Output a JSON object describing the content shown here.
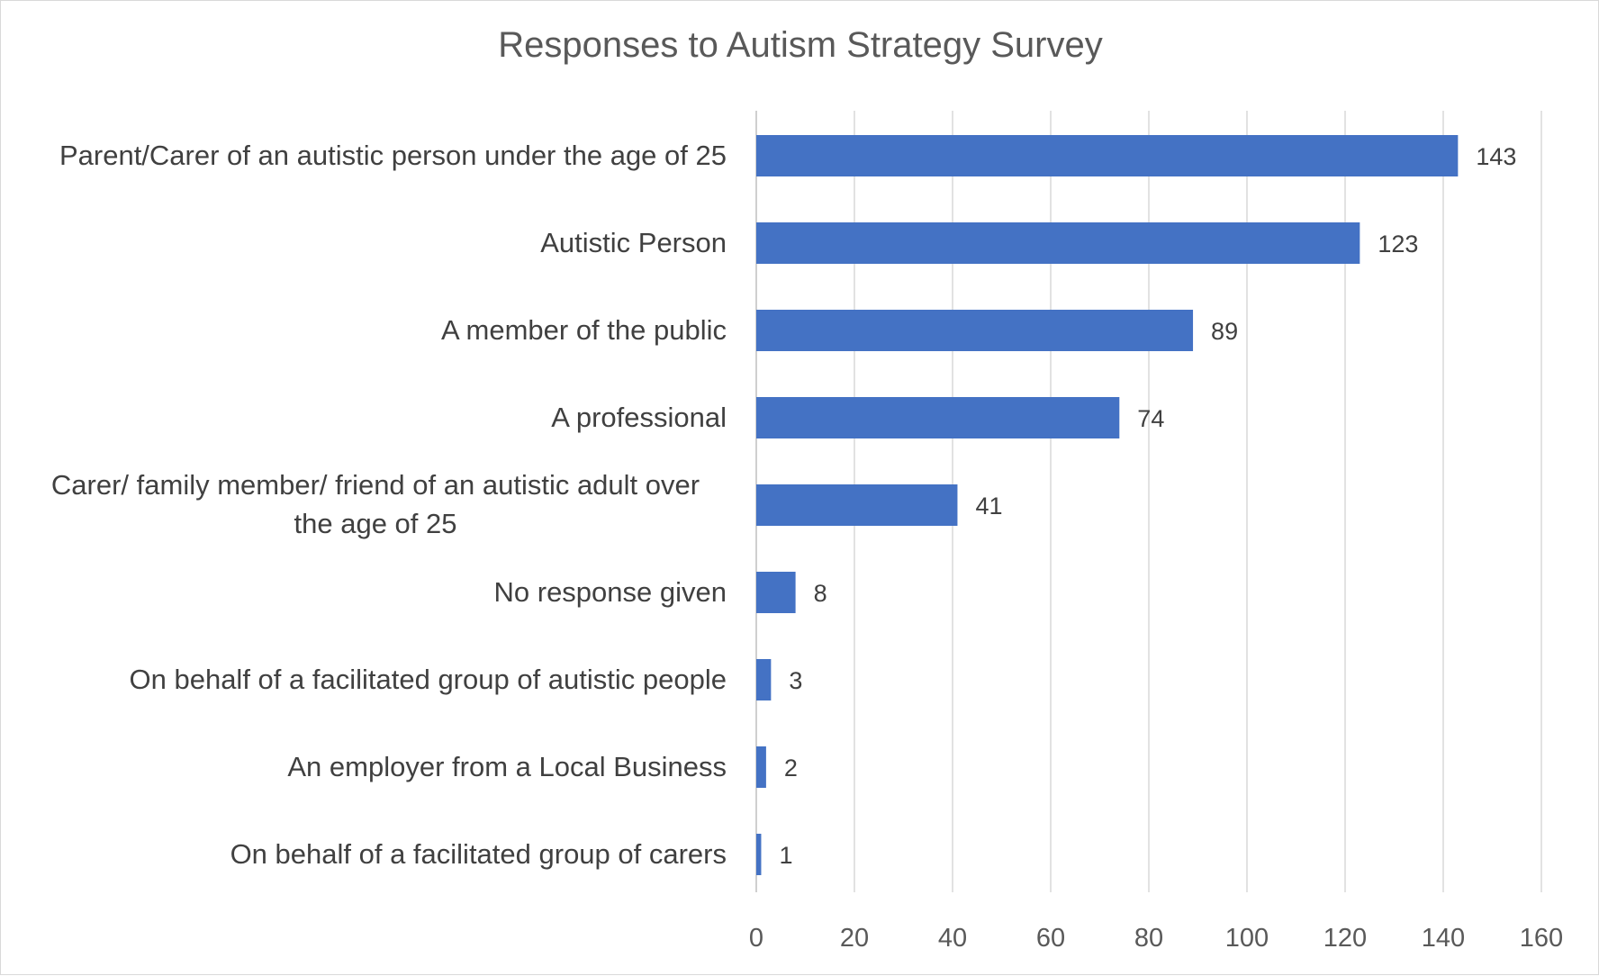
{
  "chart_data": {
    "type": "bar",
    "orientation": "horizontal",
    "title": "Responses to Autism Strategy Survey",
    "categories": [
      "Parent/Carer of an autistic person under the age of 25",
      "Autistic Person",
      "A member of the public",
      "A professional",
      "Carer/ family member/ friend of an autistic adult over the age of 25",
      "No response given",
      "On behalf of a facilitated group of autistic people",
      "An employer from a Local Business",
      "On behalf of a facilitated group of carers"
    ],
    "category_label_lines": [
      [
        "Parent/Carer of an autistic person under the age of 25"
      ],
      [
        "Autistic Person"
      ],
      [
        "A member of the public"
      ],
      [
        "A professional"
      ],
      [
        "Carer/ family member/ friend of an autistic adult over",
        "the age of 25"
      ],
      [
        "No response given"
      ],
      [
        "On behalf of a facilitated group of autistic people"
      ],
      [
        "An employer from a Local Business"
      ],
      [
        "On behalf of a facilitated group of carers"
      ]
    ],
    "values": [
      143,
      123,
      89,
      74,
      41,
      8,
      3,
      2,
      1
    ],
    "data_labels": [
      "143",
      "123",
      "89",
      "74",
      "41",
      "8",
      "3",
      "2",
      "1"
    ],
    "xlim": [
      0,
      160
    ],
    "x_ticks": [
      0,
      20,
      40,
      60,
      80,
      100,
      120,
      140,
      160
    ],
    "x_tick_labels": [
      "0",
      "20",
      "40",
      "60",
      "80",
      "100",
      "120",
      "140",
      "160"
    ],
    "xlabel": "",
    "ylabel": "",
    "grid": true,
    "legend": "none",
    "bar_color": "#4472C4",
    "grid_color": "#D9D9D9"
  }
}
